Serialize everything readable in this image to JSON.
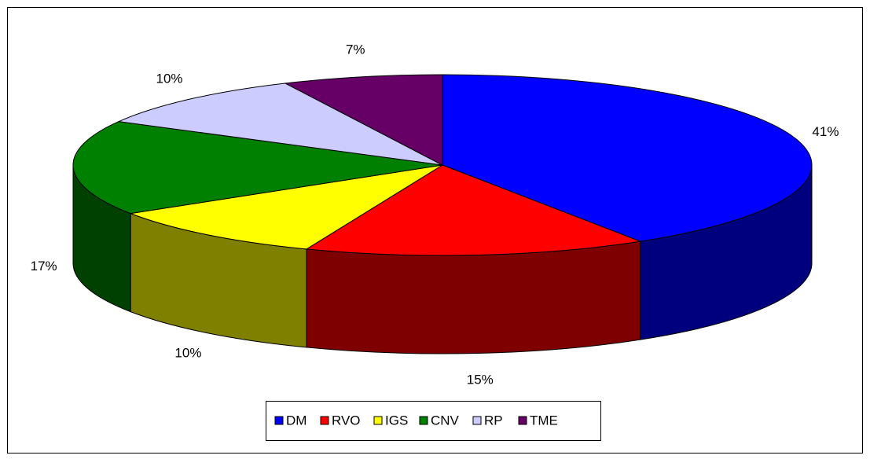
{
  "chart_data": {
    "type": "pie3d",
    "categories": [
      "DM",
      "RVO",
      "IGS",
      "CNV",
      "RP",
      "TME"
    ],
    "values": [
      41,
      15,
      10,
      17,
      10,
      7
    ],
    "value_labels": [
      "41%",
      "15%",
      "10%",
      "17%",
      "10%",
      "7%"
    ],
    "colors": [
      "#0000ff",
      "#ff0000",
      "#ffff00",
      "#008000",
      "#ccccff",
      "#660066"
    ],
    "legend": "bottom"
  }
}
